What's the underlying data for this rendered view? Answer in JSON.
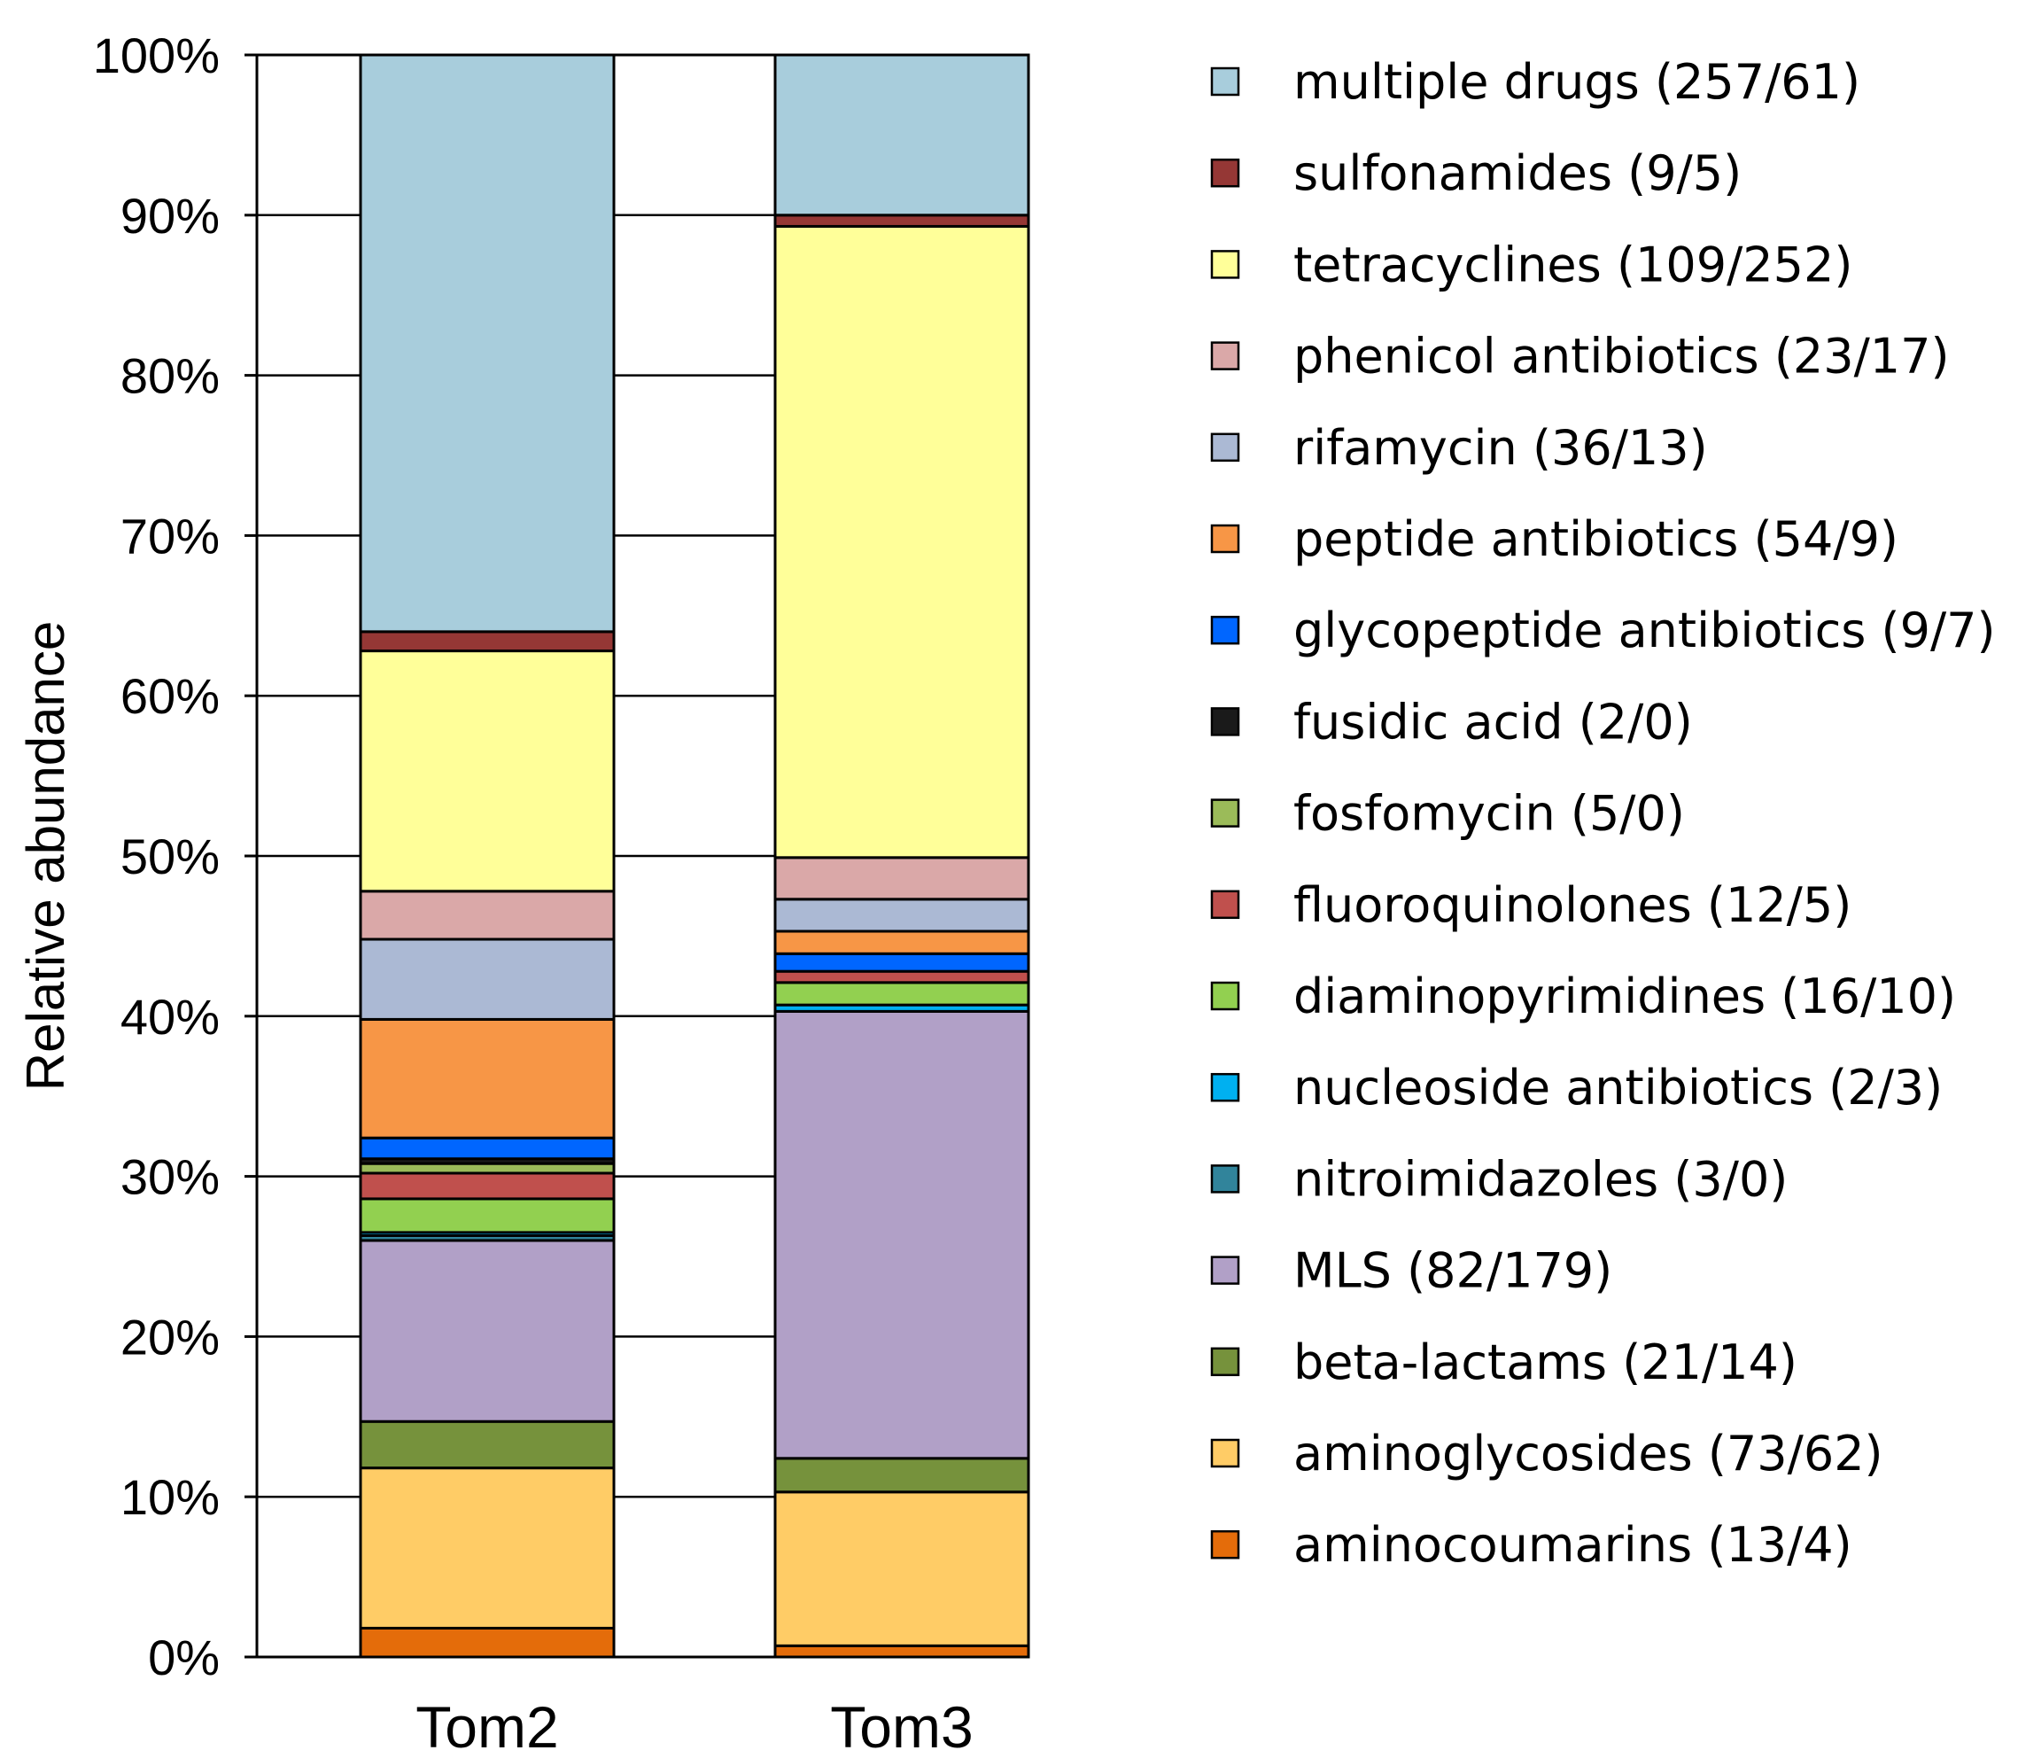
{
  "chart_data": {
    "type": "bar",
    "stacked": true,
    "ylabel": "Relative abundance",
    "xlabel": "",
    "ylim": [
      0,
      100
    ],
    "yticks": [
      "0%",
      "10%",
      "20%",
      "30%",
      "40%",
      "50%",
      "60%",
      "70%",
      "80%",
      "90%",
      "100%"
    ],
    "grid": "horizontal",
    "legend_position": "right",
    "categories": [
      "Tom2",
      "Tom3"
    ],
    "series": [
      {
        "name": "aminocoumarins (13/4)",
        "color": "#E46C0A",
        "values": [
          1.8,
          0.7
        ]
      },
      {
        "name": "aminoglycosides (73/62)",
        "color": "#FFCC66",
        "values": [
          10.0,
          9.6
        ]
      },
      {
        "name": "beta-lactams (21/14)",
        "color": "#76923C",
        "values": [
          2.9,
          2.1
        ]
      },
      {
        "name": "MLS (82/179)",
        "color": "#B1A0C7",
        "values": [
          11.3,
          27.9
        ]
      },
      {
        "name": "nitroimidazoles (3/0)",
        "color": "#31849B",
        "values": [
          0.3,
          0.0
        ]
      },
      {
        "name": "nucleoside antibiotics (2/3)",
        "color": "#00B0F0",
        "values": [
          0.2,
          0.4
        ]
      },
      {
        "name": "diaminopyrimidines (16/10)",
        "color": "#92D050",
        "values": [
          2.1,
          1.4
        ]
      },
      {
        "name": "fluoroquinolones (12/5)",
        "color": "#C0504D",
        "values": [
          1.6,
          0.7
        ]
      },
      {
        "name": "fosfomycin (5/0)",
        "color": "#9BBB59",
        "values": [
          0.6,
          0.0
        ]
      },
      {
        "name": "fusidic acid (2/0)",
        "color": "#1A1A1A",
        "values": [
          0.3,
          0.0
        ]
      },
      {
        "name": "glycopeptide antibiotics (9/7)",
        "color": "#0066FF",
        "values": [
          1.3,
          1.1
        ]
      },
      {
        "name": "peptide antibiotics (54/9)",
        "color": "#F79646",
        "values": [
          7.4,
          1.4
        ]
      },
      {
        "name": "rifamycin (36/13)",
        "color": "#ABB9D4",
        "values": [
          5.0,
          2.0
        ]
      },
      {
        "name": "phenicol antibiotics (23/17)",
        "color": "#DAA8A8",
        "values": [
          3.0,
          2.6
        ]
      },
      {
        "name": "tetracyclines (109/252)",
        "color": "#FFFF99",
        "values": [
          15.0,
          39.4
        ]
      },
      {
        "name": "sulfonamides (9/5)",
        "color": "#953735",
        "values": [
          1.2,
          0.7
        ]
      },
      {
        "name": "multiple drugs (257/61)",
        "color": "#A8CDDC",
        "values": [
          36.0,
          10.0
        ]
      }
    ],
    "legend_order": [
      "multiple drugs (257/61)",
      "sulfonamides (9/5)",
      "tetracyclines (109/252)",
      "phenicol antibiotics (23/17)",
      "rifamycin (36/13)",
      "peptide antibiotics (54/9)",
      "glycopeptide antibiotics (9/7)",
      "fusidic acid (2/0)",
      "fosfomycin (5/0)",
      "fluoroquinolones (12/5)",
      "diaminopyrimidines (16/10)",
      "nucleoside antibiotics (2/3)",
      "nitroimidazoles (3/0)",
      "MLS (82/179)",
      "beta-lactams (21/14)",
      "aminoglycosides (73/62)",
      "aminocoumarins (13/4)"
    ]
  }
}
